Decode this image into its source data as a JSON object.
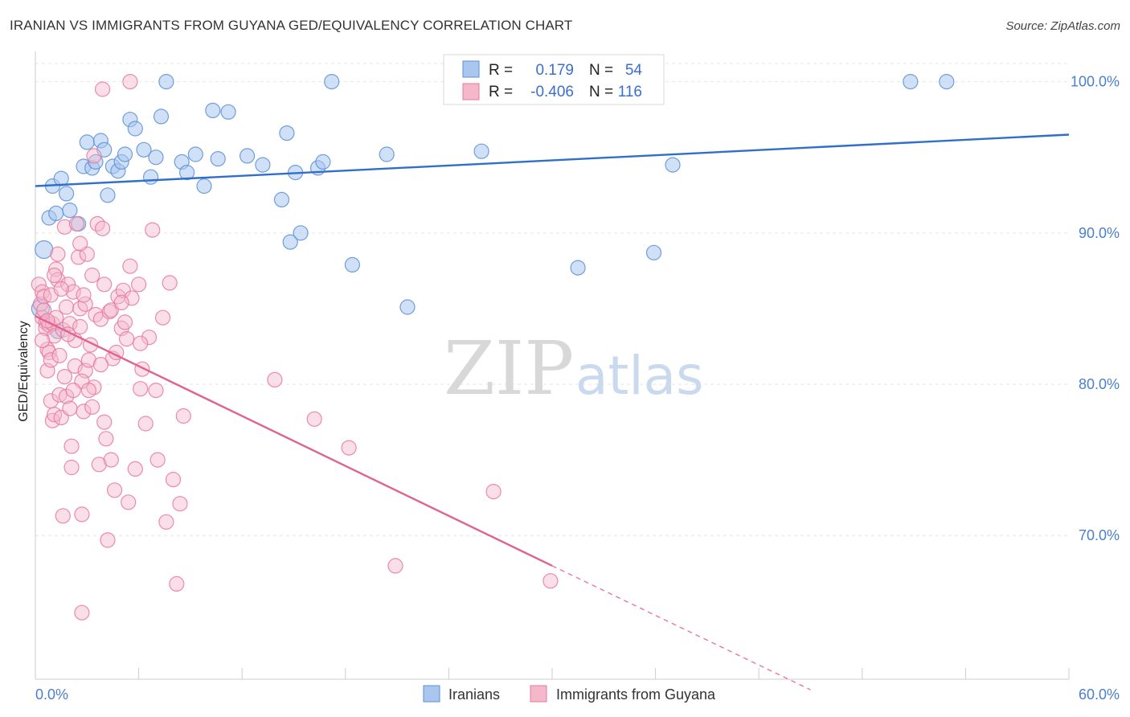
{
  "title": "IRANIAN VS IMMIGRANTS FROM GUYANA GED/EQUIVALENCY CORRELATION CHART",
  "source": "Source: ZipAtlas.com",
  "chart_data": {
    "type": "scatter",
    "xlabel": "",
    "ylabel": "GED/Equivalency",
    "xlim": [
      0,
      60
    ],
    "ylim": [
      60.5,
      102
    ],
    "x_tick_labels": [
      "0.0%",
      "60.0%"
    ],
    "y_ticks": [
      70,
      80,
      90,
      100
    ],
    "y_tick_labels": [
      "70.0%",
      "80.0%",
      "90.0%",
      "100.0%"
    ],
    "grid": true,
    "watermark": {
      "zip": "ZIP",
      "atlas": "atlas"
    },
    "legend": {
      "r_label": "R =",
      "n_label": "N =",
      "entries": [
        {
          "name": "Iranians",
          "r": "0.179",
          "n": "54"
        },
        {
          "name": "Immigrants from Guyana",
          "r": "-0.406",
          "n": "116"
        }
      ]
    },
    "series": [
      {
        "name": "Iranians",
        "color": "#5b8fd6",
        "fill": "#a9c7ee",
        "trend": {
          "x": [
            0,
            60
          ],
          "y": [
            93.1,
            96.5
          ]
        },
        "points": [
          [
            0.5,
            88.9
          ],
          [
            0.8,
            91.0
          ],
          [
            1.0,
            93.1
          ],
          [
            1.2,
            91.3
          ],
          [
            1.5,
            93.6
          ],
          [
            1.8,
            92.6
          ],
          [
            2.0,
            91.5
          ],
          [
            2.5,
            90.6
          ],
          [
            2.8,
            94.4
          ],
          [
            3.0,
            96.0
          ],
          [
            3.3,
            94.3
          ],
          [
            3.5,
            94.7
          ],
          [
            3.8,
            96.1
          ],
          [
            4.0,
            95.5
          ],
          [
            4.2,
            92.5
          ],
          [
            4.5,
            94.4
          ],
          [
            4.8,
            94.1
          ],
          [
            5.0,
            94.7
          ],
          [
            5.2,
            95.2
          ],
          [
            5.5,
            97.5
          ],
          [
            5.8,
            96.9
          ],
          [
            6.3,
            95.5
          ],
          [
            6.7,
            93.7
          ],
          [
            7.0,
            95.0
          ],
          [
            7.3,
            97.7
          ],
          [
            7.6,
            100.0
          ],
          [
            8.5,
            94.7
          ],
          [
            8.8,
            94.0
          ],
          [
            9.3,
            95.2
          ],
          [
            9.8,
            93.1
          ],
          [
            10.3,
            98.1
          ],
          [
            10.6,
            94.9
          ],
          [
            11.2,
            98.0
          ],
          [
            12.3,
            95.1
          ],
          [
            13.2,
            94.5
          ],
          [
            14.3,
            92.2
          ],
          [
            14.6,
            96.6
          ],
          [
            14.8,
            89.4
          ],
          [
            15.1,
            94.0
          ],
          [
            15.4,
            90.0
          ],
          [
            16.4,
            94.3
          ],
          [
            16.7,
            94.7
          ],
          [
            17.2,
            100.0
          ],
          [
            18.4,
            87.9
          ],
          [
            20.4,
            95.2
          ],
          [
            21.6,
            85.1
          ],
          [
            25.9,
            95.4
          ],
          [
            31.5,
            87.7
          ],
          [
            35.9,
            88.7
          ],
          [
            37.0,
            94.5
          ],
          [
            50.8,
            100.0
          ],
          [
            52.9,
            100.0
          ],
          [
            0.3,
            85.0
          ],
          [
            1.3,
            83.5
          ]
        ]
      },
      {
        "name": "Immigrants from Guyana",
        "color": "#e8789e",
        "fill": "#f5b8cb",
        "trend": {
          "x": [
            0,
            30
          ],
          "y": [
            84.5,
            68.0
          ]
        },
        "trend_dashed": {
          "x": [
            30,
            45
          ],
          "y": [
            68.0,
            59.8
          ]
        },
        "points": [
          [
            0.2,
            86.6
          ],
          [
            0.3,
            85.3
          ],
          [
            0.4,
            84.4
          ],
          [
            0.4,
            86.1
          ],
          [
            0.5,
            85.8
          ],
          [
            0.6,
            84.1
          ],
          [
            0.6,
            83.7
          ],
          [
            0.7,
            82.3
          ],
          [
            0.7,
            80.9
          ],
          [
            0.8,
            83.9
          ],
          [
            0.8,
            82.1
          ],
          [
            0.9,
            81.6
          ],
          [
            0.9,
            78.9
          ],
          [
            1.0,
            84.0
          ],
          [
            1.0,
            77.6
          ],
          [
            1.1,
            78.0
          ],
          [
            1.1,
            83.2
          ],
          [
            1.2,
            87.6
          ],
          [
            1.3,
            86.9
          ],
          [
            1.3,
            88.6
          ],
          [
            1.4,
            79.3
          ],
          [
            1.5,
            77.8
          ],
          [
            1.6,
            83.6
          ],
          [
            1.6,
            71.3
          ],
          [
            1.7,
            90.4
          ],
          [
            1.8,
            85.1
          ],
          [
            1.8,
            79.2
          ],
          [
            1.9,
            86.6
          ],
          [
            2.0,
            84.0
          ],
          [
            2.0,
            78.4
          ],
          [
            2.1,
            75.9
          ],
          [
            2.1,
            74.5
          ],
          [
            2.2,
            86.1
          ],
          [
            2.3,
            81.2
          ],
          [
            2.4,
            90.6
          ],
          [
            2.5,
            88.4
          ],
          [
            2.6,
            85.0
          ],
          [
            2.6,
            83.8
          ],
          [
            2.7,
            71.4
          ],
          [
            2.8,
            78.2
          ],
          [
            2.9,
            80.9
          ],
          [
            3.0,
            88.6
          ],
          [
            3.1,
            81.6
          ],
          [
            3.2,
            82.6
          ],
          [
            3.3,
            87.2
          ],
          [
            3.4,
            79.8
          ],
          [
            3.5,
            84.6
          ],
          [
            3.6,
            90.6
          ],
          [
            3.7,
            74.7
          ],
          [
            3.8,
            84.3
          ],
          [
            3.9,
            90.3
          ],
          [
            4.0,
            86.6
          ],
          [
            4.1,
            76.4
          ],
          [
            4.2,
            69.7
          ],
          [
            4.3,
            84.8
          ],
          [
            4.4,
            75.0
          ],
          [
            4.5,
            81.7
          ],
          [
            4.6,
            73.0
          ],
          [
            4.8,
            85.8
          ],
          [
            5.0,
            83.7
          ],
          [
            5.1,
            86.2
          ],
          [
            5.3,
            83.0
          ],
          [
            5.4,
            72.2
          ],
          [
            5.5,
            87.8
          ],
          [
            5.6,
            85.7
          ],
          [
            5.8,
            74.4
          ],
          [
            6.0,
            86.6
          ],
          [
            6.1,
            79.7
          ],
          [
            6.2,
            81.0
          ],
          [
            6.4,
            77.4
          ],
          [
            6.6,
            83.1
          ],
          [
            6.8,
            90.2
          ],
          [
            7.0,
            79.6
          ],
          [
            7.1,
            75.0
          ],
          [
            7.4,
            84.4
          ],
          [
            7.6,
            70.9
          ],
          [
            7.8,
            86.7
          ],
          [
            8.0,
            73.7
          ],
          [
            8.2,
            66.8
          ],
          [
            8.4,
            72.1
          ],
          [
            8.6,
            77.9
          ],
          [
            13.9,
            80.3
          ],
          [
            16.2,
            77.7
          ],
          [
            18.2,
            75.8
          ],
          [
            20.9,
            68.0
          ],
          [
            26.6,
            72.9
          ],
          [
            29.9,
            67.0
          ],
          [
            3.9,
            99.5
          ],
          [
            5.5,
            100.0
          ],
          [
            3.4,
            95.1
          ],
          [
            0.9,
            85.9
          ],
          [
            1.2,
            84.4
          ],
          [
            2.3,
            82.9
          ],
          [
            2.7,
            80.2
          ],
          [
            3.1,
            79.6
          ],
          [
            4.0,
            77.5
          ],
          [
            1.5,
            86.3
          ],
          [
            0.5,
            84.9
          ],
          [
            1.9,
            83.3
          ],
          [
            2.9,
            85.3
          ],
          [
            4.7,
            82.1
          ],
          [
            5.2,
            84.1
          ],
          [
            6.1,
            82.7
          ],
          [
            1.1,
            87.2
          ],
          [
            0.7,
            84.2
          ],
          [
            2.6,
            89.3
          ],
          [
            3.8,
            81.3
          ],
          [
            4.4,
            84.9
          ],
          [
            2.2,
            79.6
          ],
          [
            1.4,
            81.9
          ],
          [
            5.0,
            85.4
          ],
          [
            3.3,
            78.5
          ],
          [
            2.8,
            85.9
          ],
          [
            0.4,
            82.9
          ],
          [
            2.7,
            64.9
          ],
          [
            1.7,
            80.5
          ]
        ]
      }
    ]
  }
}
